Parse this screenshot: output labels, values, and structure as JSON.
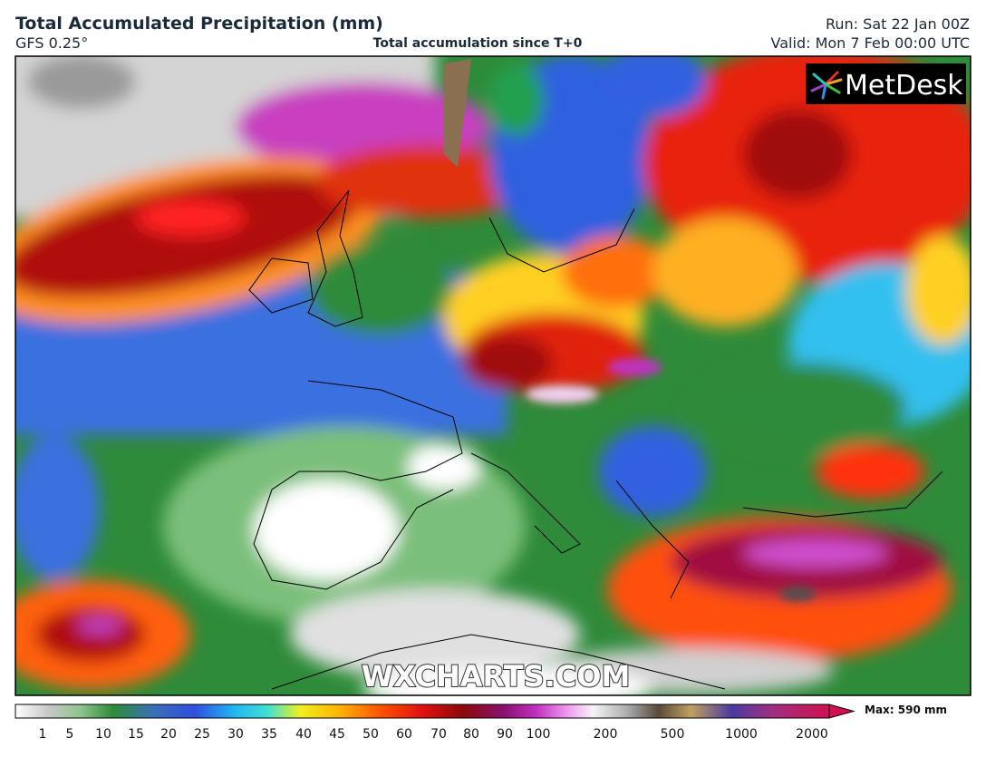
{
  "header": {
    "title": "Total Accumulated Precipitation (mm)",
    "model": "GFS 0.25°",
    "subtitle": "Total accumulation since T+0",
    "run": "Run: Sat 22 Jan 00Z",
    "valid": "Valid: Mon 7 Feb 00:00 UTC"
  },
  "logo": "MetDesk",
  "watermark": "WXCHARTS.COM",
  "legend": {
    "ticks": [
      1,
      5,
      10,
      15,
      20,
      25,
      30,
      35,
      40,
      45,
      50,
      60,
      70,
      80,
      90,
      100,
      200,
      500,
      1000,
      2000
    ],
    "max": "Max: 590 mm"
  }
}
